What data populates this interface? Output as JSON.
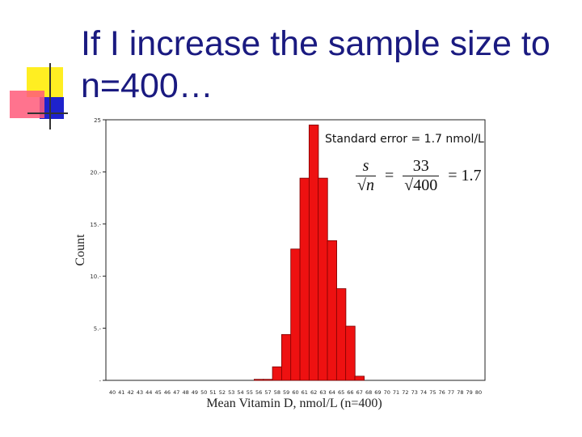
{
  "slide": {
    "title": "If I increase the sample size to\nn=400…",
    "se_label": "Standard error = 1.7 nmol/L",
    "formula": {
      "numerator_symbol": "s",
      "sqrt_symbol": "√",
      "denominator_symbol": "n",
      "equals": "=",
      "numerator_value": "33",
      "denominator_value": "400",
      "result": "= 1.7"
    }
  },
  "colors": {
    "bar": "#ee1111",
    "bar_edge": "#7a0000",
    "title": "#1a1a80"
  },
  "chart_data": {
    "type": "bar",
    "title": "",
    "xlabel": "Mean Vitamin D, nmol/L (n=400)",
    "ylabel": "Count",
    "ylim": [
      0,
      25
    ],
    "yticks": [
      0,
      5,
      10,
      15,
      20,
      25
    ],
    "ytick_labels": [
      "-",
      "5.-",
      "10.-",
      "15.-",
      "20.-",
      "25"
    ],
    "categories": [
      40,
      41,
      42,
      43,
      44,
      45,
      46,
      47,
      48,
      49,
      50,
      51,
      52,
      53,
      54,
      55,
      56,
      57,
      58,
      59,
      60,
      61,
      62,
      63,
      64,
      65,
      66,
      67,
      68,
      69,
      70,
      71,
      72,
      73,
      74,
      75,
      76,
      77,
      78,
      79,
      80
    ],
    "values": [
      0,
      0,
      0,
      0,
      0,
      0,
      0,
      0,
      0,
      0,
      0,
      0,
      0,
      0,
      0,
      0,
      0.1,
      0.1,
      1.3,
      4.4,
      12.6,
      19.4,
      24.5,
      19.4,
      13.4,
      8.8,
      5.2,
      0.4,
      0,
      0,
      0,
      0,
      0,
      0,
      0,
      0,
      0,
      0,
      0,
      0,
      0
    ]
  }
}
